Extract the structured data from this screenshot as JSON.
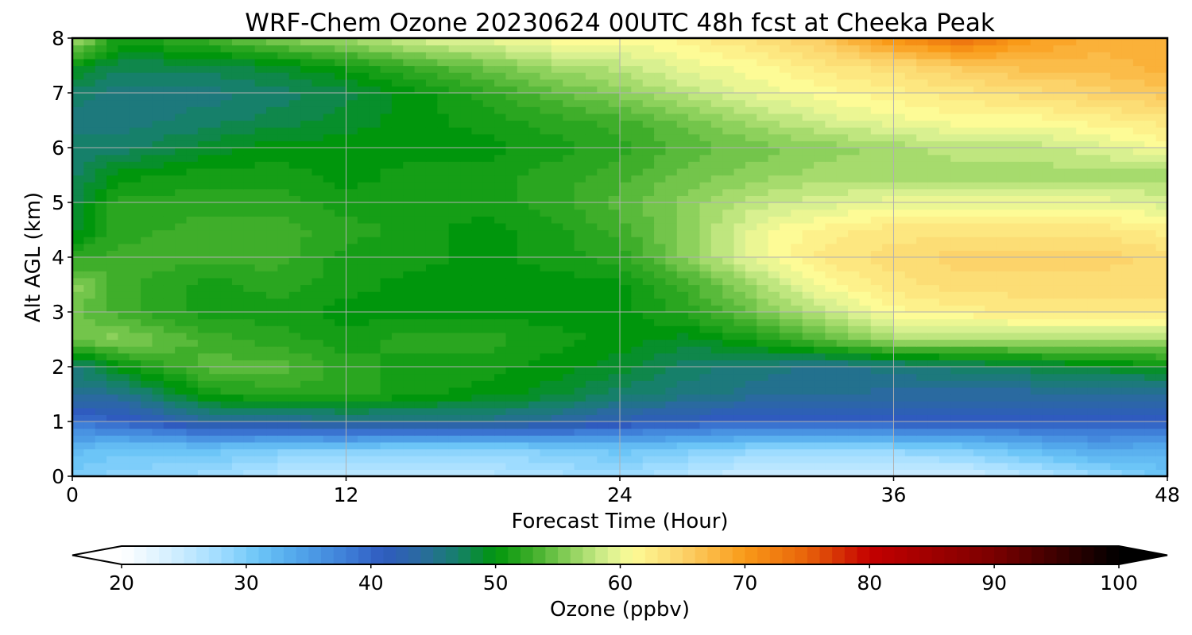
{
  "chart_data": {
    "type": "heatmap",
    "title": "WRF-Chem Ozone  20230624 00UTC 48h fcst at Cheeka Peak",
    "xlabel": "Forecast Time (Hour)",
    "ylabel": "Alt AGL (km)",
    "xlim": [
      0,
      48
    ],
    "ylim": [
      0,
      8
    ],
    "xticks": [
      "0",
      "12",
      "24",
      "36",
      "48"
    ],
    "yticks": [
      "0",
      "1",
      "2",
      "3",
      "4",
      "5",
      "6",
      "7",
      "8"
    ],
    "grid": true,
    "x_hours": [
      0,
      2,
      6,
      9,
      12,
      15,
      18,
      21,
      24,
      27,
      30,
      33,
      36,
      39,
      42,
      45,
      48
    ],
    "y_km": [
      0,
      0.5,
      1,
      1.5,
      2,
      2.5,
      3,
      3.5,
      4,
      4.5,
      5,
      5.5,
      6,
      6.5,
      7,
      7.5,
      8
    ],
    "z_ppbv": [
      [
        30,
        29,
        28,
        26,
        25,
        25,
        26,
        27,
        28,
        26,
        24,
        24,
        24,
        24,
        26,
        28,
        31
      ],
      [
        32,
        31,
        31,
        30,
        30,
        29,
        29,
        30,
        31,
        30,
        29,
        29,
        29,
        30,
        32,
        34,
        33
      ],
      [
        39,
        40,
        44,
        44,
        45,
        45,
        45,
        44,
        42,
        41,
        40,
        40,
        41,
        41,
        41,
        41,
        41
      ],
      [
        45,
        45,
        51,
        52,
        52,
        51,
        50,
        49,
        47,
        46,
        45,
        45,
        44,
        44,
        44,
        44,
        44
      ],
      [
        46,
        50,
        54,
        54,
        52,
        51,
        51,
        50,
        49,
        47,
        46,
        45,
        46,
        47,
        48,
        49,
        50
      ],
      [
        55,
        56,
        53,
        52,
        51,
        52,
        52,
        51,
        50,
        49,
        51,
        54,
        57,
        57,
        57,
        57,
        57
      ],
      [
        55,
        53,
        51,
        51,
        50,
        50,
        50,
        50,
        50,
        52,
        55,
        58,
        61,
        62,
        63,
        63,
        63
      ],
      [
        56,
        53,
        51,
        52,
        51,
        50,
        50,
        50,
        50,
        53,
        57,
        61,
        63,
        64,
        64,
        64,
        64
      ],
      [
        52,
        53,
        53,
        53,
        51,
        51,
        50,
        51,
        52,
        56,
        60,
        63,
        64,
        65,
        65,
        65,
        64
      ],
      [
        49,
        52,
        53,
        53,
        52,
        51,
        50,
        51,
        53,
        56,
        60,
        62,
        63,
        63,
        63,
        63,
        62
      ],
      [
        48,
        52,
        52,
        52,
        51,
        51,
        51,
        52,
        54,
        56,
        58,
        59,
        60,
        60,
        60,
        60,
        59
      ],
      [
        47,
        50,
        51,
        51,
        50,
        51,
        51,
        52,
        53,
        55,
        56,
        57,
        57,
        57,
        57,
        57,
        57
      ],
      [
        47,
        47,
        49,
        50,
        50,
        50,
        50,
        51,
        52,
        54,
        55,
        56,
        57,
        58,
        58,
        59,
        61
      ],
      [
        46,
        46,
        47,
        48,
        49,
        50,
        51,
        52,
        53,
        55,
        57,
        59,
        60,
        61,
        61,
        62,
        63
      ],
      [
        47,
        46,
        46,
        47,
        48,
        50,
        52,
        54,
        56,
        58,
        60,
        61,
        62,
        63,
        64,
        65,
        66
      ],
      [
        50,
        48,
        48,
        49,
        51,
        53,
        55,
        57,
        58,
        60,
        61,
        63,
        64,
        66,
        67,
        67,
        68
      ],
      [
        58,
        51,
        53,
        56,
        57,
        59,
        60,
        61,
        61,
        62,
        64,
        66,
        71,
        74,
        70,
        68,
        68
      ]
    ],
    "colorbar": {
      "label": "Ozone  (ppbv)",
      "ticks": [
        "20",
        "30",
        "40",
        "50",
        "60",
        "70",
        "80",
        "90",
        "100"
      ],
      "range": [
        20,
        100
      ],
      "extend": "both",
      "color_stops": [
        {
          "v": 20,
          "c": "#ffffff"
        },
        {
          "v": 24,
          "c": "#d4efff"
        },
        {
          "v": 28,
          "c": "#9edcff"
        },
        {
          "v": 31,
          "c": "#6cc5f7"
        },
        {
          "v": 34,
          "c": "#52a7eb"
        },
        {
          "v": 38,
          "c": "#3f7fd8"
        },
        {
          "v": 41,
          "c": "#2f5bbf"
        },
        {
          "v": 44,
          "c": "#2a6aa0"
        },
        {
          "v": 47,
          "c": "#16806a"
        },
        {
          "v": 50,
          "c": "#00960c"
        },
        {
          "v": 53,
          "c": "#3fae2a"
        },
        {
          "v": 56,
          "c": "#8dd15c"
        },
        {
          "v": 59,
          "c": "#d8f090"
        },
        {
          "v": 61,
          "c": "#fdfb96"
        },
        {
          "v": 65,
          "c": "#fcd36a"
        },
        {
          "v": 70,
          "c": "#f99a18"
        },
        {
          "v": 75,
          "c": "#e8620a"
        },
        {
          "v": 80,
          "c": "#c40000"
        },
        {
          "v": 90,
          "c": "#7a0000"
        },
        {
          "v": 100,
          "c": "#000000"
        }
      ]
    }
  }
}
